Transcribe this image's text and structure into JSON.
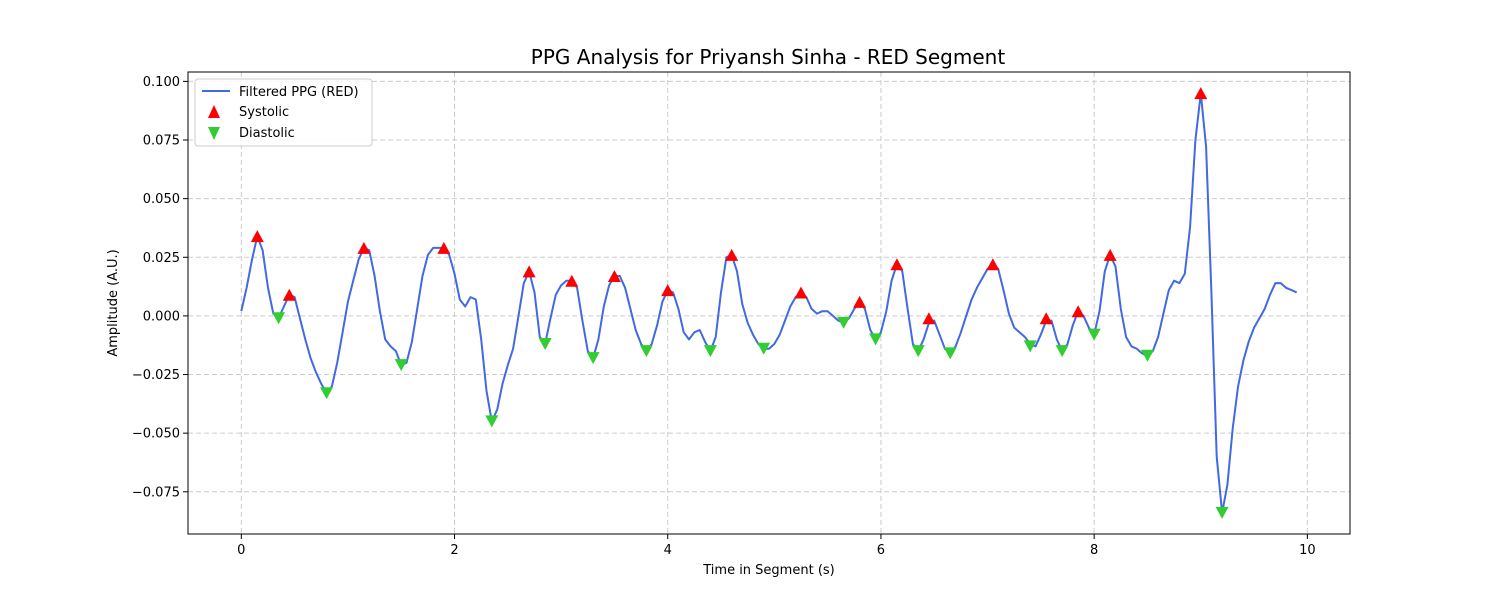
{
  "chart_data": {
    "type": "line",
    "title": "PPG Analysis for Priyansh Sinha - RED Segment",
    "xlabel": "Time in Segment (s)",
    "ylabel": "Amplitude (A.U.)",
    "xlim": [
      -0.5,
      10.4
    ],
    "ylim": [
      -0.093,
      0.104
    ],
    "xticks": [
      0,
      2,
      4,
      6,
      8,
      10
    ],
    "yticks": [
      -0.075,
      -0.05,
      -0.025,
      0.0,
      0.025,
      0.05,
      0.075,
      0.1
    ],
    "ytick_labels": [
      "−0.075",
      "−0.050",
      "−0.025",
      "0.000",
      "0.025",
      "0.050",
      "0.075",
      "0.100"
    ],
    "grid": true,
    "legend_position": "top-left",
    "colors": {
      "line": "#4169e1",
      "systolic": "#ff0000",
      "diastolic": "#32cd32"
    },
    "series": [
      {
        "name": "Filtered PPG (RED)",
        "kind": "line",
        "points": [
          [
            0.0,
            0.002
          ],
          [
            0.05,
            0.012
          ],
          [
            0.1,
            0.024
          ],
          [
            0.15,
            0.034
          ],
          [
            0.2,
            0.028
          ],
          [
            0.25,
            0.012
          ],
          [
            0.3,
            0.001
          ],
          [
            0.35,
            -0.001
          ],
          [
            0.4,
            0.004
          ],
          [
            0.45,
            0.009
          ],
          [
            0.5,
            0.008
          ],
          [
            0.55,
            -0.001
          ],
          [
            0.6,
            -0.01
          ],
          [
            0.65,
            -0.018
          ],
          [
            0.7,
            -0.024
          ],
          [
            0.75,
            -0.029
          ],
          [
            0.8,
            -0.033
          ],
          [
            0.85,
            -0.03
          ],
          [
            0.9,
            -0.02
          ],
          [
            0.95,
            -0.007
          ],
          [
            1.0,
            0.006
          ],
          [
            1.05,
            0.015
          ],
          [
            1.1,
            0.024
          ],
          [
            1.15,
            0.029
          ],
          [
            1.2,
            0.028
          ],
          [
            1.25,
            0.017
          ],
          [
            1.3,
            0.002
          ],
          [
            1.35,
            -0.01
          ],
          [
            1.4,
            -0.013
          ],
          [
            1.45,
            -0.015
          ],
          [
            1.5,
            -0.021
          ],
          [
            1.55,
            -0.02
          ],
          [
            1.6,
            -0.011
          ],
          [
            1.65,
            0.003
          ],
          [
            1.7,
            0.017
          ],
          [
            1.75,
            0.026
          ],
          [
            1.8,
            0.029
          ],
          [
            1.85,
            0.029
          ],
          [
            1.9,
            0.029
          ],
          [
            1.95,
            0.026
          ],
          [
            2.0,
            0.018
          ],
          [
            2.05,
            0.007
          ],
          [
            2.1,
            0.004
          ],
          [
            2.15,
            0.008
          ],
          [
            2.2,
            0.007
          ],
          [
            2.25,
            -0.01
          ],
          [
            2.3,
            -0.032
          ],
          [
            2.35,
            -0.045
          ],
          [
            2.4,
            -0.04
          ],
          [
            2.45,
            -0.029
          ],
          [
            2.5,
            -0.021
          ],
          [
            2.55,
            -0.014
          ],
          [
            2.6,
            0.0
          ],
          [
            2.65,
            0.014
          ],
          [
            2.7,
            0.019
          ],
          [
            2.75,
            0.01
          ],
          [
            2.8,
            -0.009
          ],
          [
            2.85,
            -0.012
          ],
          [
            2.9,
            -0.001
          ],
          [
            2.95,
            0.009
          ],
          [
            3.0,
            0.013
          ],
          [
            3.05,
            0.015
          ],
          [
            3.1,
            0.015
          ],
          [
            3.15,
            0.012
          ],
          [
            3.2,
            -0.002
          ],
          [
            3.25,
            -0.015
          ],
          [
            3.3,
            -0.018
          ],
          [
            3.35,
            -0.01
          ],
          [
            3.4,
            0.004
          ],
          [
            3.45,
            0.013
          ],
          [
            3.5,
            0.017
          ],
          [
            3.55,
            0.017
          ],
          [
            3.6,
            0.012
          ],
          [
            3.65,
            0.003
          ],
          [
            3.7,
            -0.006
          ],
          [
            3.75,
            -0.012
          ],
          [
            3.8,
            -0.015
          ],
          [
            3.85,
            -0.012
          ],
          [
            3.9,
            -0.004
          ],
          [
            3.95,
            0.006
          ],
          [
            4.0,
            0.011
          ],
          [
            4.05,
            0.01
          ],
          [
            4.1,
            0.003
          ],
          [
            4.15,
            -0.007
          ],
          [
            4.2,
            -0.01
          ],
          [
            4.25,
            -0.007
          ],
          [
            4.3,
            -0.006
          ],
          [
            4.35,
            -0.011
          ],
          [
            4.4,
            -0.015
          ],
          [
            4.45,
            -0.009
          ],
          [
            4.5,
            0.01
          ],
          [
            4.55,
            0.025
          ],
          [
            4.6,
            0.026
          ],
          [
            4.65,
            0.019
          ],
          [
            4.7,
            0.005
          ],
          [
            4.75,
            -0.003
          ],
          [
            4.8,
            -0.008
          ],
          [
            4.85,
            -0.012
          ],
          [
            4.9,
            -0.014
          ],
          [
            4.95,
            -0.014
          ],
          [
            5.0,
            -0.012
          ],
          [
            5.05,
            -0.008
          ],
          [
            5.1,
            -0.002
          ],
          [
            5.15,
            0.004
          ],
          [
            5.2,
            0.008
          ],
          [
            5.25,
            0.01
          ],
          [
            5.3,
            0.008
          ],
          [
            5.35,
            0.003
          ],
          [
            5.4,
            0.001
          ],
          [
            5.45,
            0.002
          ],
          [
            5.5,
            0.002
          ],
          [
            5.55,
            0.0
          ],
          [
            5.6,
            -0.002
          ],
          [
            5.65,
            -0.003
          ],
          [
            5.7,
            -0.001
          ],
          [
            5.75,
            0.003
          ],
          [
            5.8,
            0.006
          ],
          [
            5.85,
            0.003
          ],
          [
            5.9,
            -0.006
          ],
          [
            5.95,
            -0.01
          ],
          [
            6.0,
            -0.007
          ],
          [
            6.05,
            0.002
          ],
          [
            6.1,
            0.015
          ],
          [
            6.15,
            0.022
          ],
          [
            6.2,
            0.019
          ],
          [
            6.25,
            0.003
          ],
          [
            6.3,
            -0.012
          ],
          [
            6.35,
            -0.015
          ],
          [
            6.4,
            -0.01
          ],
          [
            6.45,
            -0.003
          ],
          [
            6.5,
            -0.002
          ],
          [
            6.55,
            -0.008
          ],
          [
            6.6,
            -0.014
          ],
          [
            6.65,
            -0.016
          ],
          [
            6.7,
            -0.013
          ],
          [
            6.75,
            -0.007
          ],
          [
            6.8,
            0.0
          ],
          [
            6.85,
            0.007
          ],
          [
            6.9,
            0.012
          ],
          [
            6.95,
            0.016
          ],
          [
            7.0,
            0.02
          ],
          [
            7.05,
            0.022
          ],
          [
            7.1,
            0.02
          ],
          [
            7.15,
            0.011
          ],
          [
            7.2,
            0.001
          ],
          [
            7.25,
            -0.005
          ],
          [
            7.3,
            -0.007
          ],
          [
            7.35,
            -0.009
          ],
          [
            7.4,
            -0.012
          ],
          [
            7.45,
            -0.013
          ],
          [
            7.5,
            -0.008
          ],
          [
            7.55,
            -0.002
          ],
          [
            7.6,
            -0.002
          ],
          [
            7.65,
            -0.01
          ],
          [
            7.7,
            -0.015
          ],
          [
            7.75,
            -0.012
          ],
          [
            7.8,
            -0.004
          ],
          [
            7.85,
            0.002
          ],
          [
            7.9,
            0.0
          ],
          [
            7.95,
            -0.005
          ],
          [
            8.0,
            -0.008
          ],
          [
            8.05,
            0.002
          ],
          [
            8.1,
            0.019
          ],
          [
            8.15,
            0.026
          ],
          [
            8.2,
            0.021
          ],
          [
            8.25,
            0.003
          ],
          [
            8.3,
            -0.009
          ],
          [
            8.35,
            -0.013
          ],
          [
            8.4,
            -0.014
          ],
          [
            8.45,
            -0.016
          ],
          [
            8.5,
            -0.017
          ],
          [
            8.55,
            -0.015
          ],
          [
            8.6,
            -0.009
          ],
          [
            8.65,
            0.001
          ],
          [
            8.7,
            0.011
          ],
          [
            8.75,
            0.015
          ],
          [
            8.8,
            0.014
          ],
          [
            8.85,
            0.018
          ],
          [
            8.9,
            0.038
          ],
          [
            8.95,
            0.075
          ],
          [
            9.0,
            0.095
          ],
          [
            9.05,
            0.072
          ],
          [
            9.1,
            0.01
          ],
          [
            9.15,
            -0.06
          ],
          [
            9.2,
            -0.084
          ],
          [
            9.25,
            -0.072
          ],
          [
            9.3,
            -0.048
          ],
          [
            9.35,
            -0.03
          ],
          [
            9.4,
            -0.019
          ],
          [
            9.45,
            -0.011
          ],
          [
            9.5,
            -0.005
          ],
          [
            9.55,
            -0.001
          ],
          [
            9.6,
            0.003
          ],
          [
            9.65,
            0.009
          ],
          [
            9.7,
            0.014
          ],
          [
            9.75,
            0.014
          ],
          [
            9.8,
            0.012
          ],
          [
            9.85,
            0.011
          ],
          [
            9.9,
            0.01
          ]
        ]
      },
      {
        "name": "Systolic",
        "kind": "marker-up",
        "points": [
          [
            0.15,
            0.034
          ],
          [
            0.45,
            0.009
          ],
          [
            1.15,
            0.029
          ],
          [
            1.9,
            0.029
          ],
          [
            2.7,
            0.019
          ],
          [
            3.1,
            0.015
          ],
          [
            3.5,
            0.017
          ],
          [
            4.0,
            0.011
          ],
          [
            4.6,
            0.026
          ],
          [
            5.25,
            0.01
          ],
          [
            5.8,
            0.006
          ],
          [
            6.15,
            0.022
          ],
          [
            6.45,
            -0.001
          ],
          [
            7.05,
            0.022
          ],
          [
            7.55,
            -0.001
          ],
          [
            7.85,
            0.002
          ],
          [
            8.15,
            0.026
          ],
          [
            9.0,
            0.095
          ]
        ]
      },
      {
        "name": "Diastolic",
        "kind": "marker-down",
        "points": [
          [
            0.35,
            -0.001
          ],
          [
            0.8,
            -0.033
          ],
          [
            1.5,
            -0.021
          ],
          [
            2.35,
            -0.045
          ],
          [
            2.85,
            -0.012
          ],
          [
            3.3,
            -0.018
          ],
          [
            3.8,
            -0.015
          ],
          [
            4.4,
            -0.015
          ],
          [
            4.9,
            -0.014
          ],
          [
            5.65,
            -0.003
          ],
          [
            5.95,
            -0.01
          ],
          [
            6.35,
            -0.015
          ],
          [
            6.65,
            -0.016
          ],
          [
            7.4,
            -0.013
          ],
          [
            7.7,
            -0.015
          ],
          [
            8.0,
            -0.008
          ],
          [
            8.5,
            -0.017
          ],
          [
            9.2,
            -0.084
          ]
        ]
      }
    ]
  }
}
